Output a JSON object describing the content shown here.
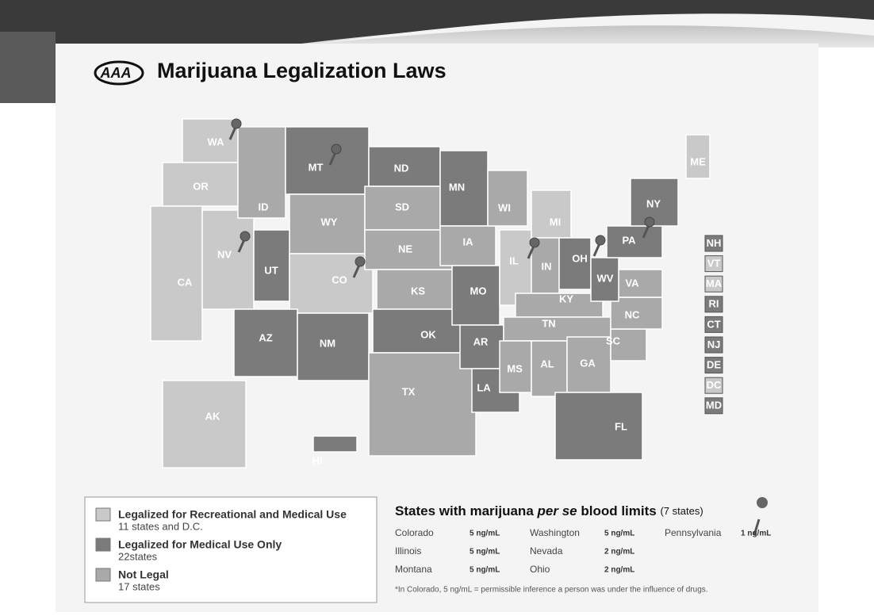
{
  "header": {
    "logo": "AAA",
    "title": "Marijuana Legalization Laws"
  },
  "states": [
    {
      "label": "WA",
      "color": "#c9c9c9",
      "pin": true
    },
    {
      "label": "OR",
      "color": "#c9c9c9"
    },
    {
      "label": "CA",
      "color": "#c9c9c9"
    },
    {
      "label": "NV",
      "color": "#c9c9c9",
      "pin": true
    },
    {
      "label": "ID",
      "color": "#a9a9a9"
    },
    {
      "label": "MT",
      "color": "#7b7b7b",
      "pin": true
    },
    {
      "label": "WY",
      "color": "#a9a9a9"
    },
    {
      "label": "UT",
      "color": "#7b7b7b"
    },
    {
      "label": "CO",
      "color": "#c9c9c9",
      "pin": true
    },
    {
      "label": "AZ",
      "color": "#7b7b7b"
    },
    {
      "label": "NM",
      "color": "#7b7b7b"
    },
    {
      "label": "ND",
      "color": "#7b7b7b"
    },
    {
      "label": "SD",
      "color": "#a9a9a9"
    },
    {
      "label": "NE",
      "color": "#a9a9a9"
    },
    {
      "label": "KS",
      "color": "#a9a9a9"
    },
    {
      "label": "OK",
      "color": "#7b7b7b"
    },
    {
      "label": "TX",
      "color": "#a9a9a9"
    },
    {
      "label": "MN",
      "color": "#7b7b7b"
    },
    {
      "label": "IA",
      "color": "#a9a9a9"
    },
    {
      "label": "MO",
      "color": "#7b7b7b"
    },
    {
      "label": "AR",
      "color": "#7b7b7b"
    },
    {
      "label": "LA",
      "color": "#7b7b7b"
    },
    {
      "label": "WI",
      "color": "#a9a9a9"
    },
    {
      "label": "IL",
      "color": "#c9c9c9",
      "pin": true
    },
    {
      "label": "MI",
      "color": "#c9c9c9"
    },
    {
      "label": "IN",
      "color": "#a9a9a9"
    },
    {
      "label": "OH",
      "color": "#7b7b7b",
      "pin": true
    },
    {
      "label": "KY",
      "color": "#a9a9a9"
    },
    {
      "label": "TN",
      "color": "#a9a9a9"
    },
    {
      "label": "MS",
      "color": "#a9a9a9"
    },
    {
      "label": "AL",
      "color": "#a9a9a9"
    },
    {
      "label": "GA",
      "color": "#a9a9a9"
    },
    {
      "label": "FL",
      "color": "#7b7b7b"
    },
    {
      "label": "SC",
      "color": "#a9a9a9"
    },
    {
      "label": "NC",
      "color": "#a9a9a9"
    },
    {
      "label": "VA",
      "color": "#a9a9a9"
    },
    {
      "label": "WV",
      "color": "#7b7b7b"
    },
    {
      "label": "PA",
      "color": "#7b7b7b",
      "pin": true
    },
    {
      "label": "NY",
      "color": "#7b7b7b"
    },
    {
      "label": "ME",
      "color": "#c9c9c9"
    },
    {
      "label": "AK",
      "color": "#c9c9c9"
    },
    {
      "label": "HI",
      "color": "#7b7b7b"
    }
  ],
  "small_states": [
    {
      "label": "NH",
      "color": "#7b7b7b"
    },
    {
      "label": "VT",
      "color": "#c9c9c9"
    },
    {
      "label": "MA",
      "color": "#c9c9c9"
    },
    {
      "label": "RI",
      "color": "#7b7b7b"
    },
    {
      "label": "CT",
      "color": "#7b7b7b"
    },
    {
      "label": "NJ",
      "color": "#7b7b7b"
    },
    {
      "label": "DE",
      "color": "#7b7b7b"
    },
    {
      "label": "DC",
      "color": "#c9c9c9"
    },
    {
      "label": "MD",
      "color": "#7b7b7b"
    }
  ],
  "legend": {
    "items": [
      {
        "label": "Legalized for Recreational and Medical Use",
        "sublabel": "11 states and D.C.",
        "color": "#c9c9c9"
      },
      {
        "label": "Legalized for Medical Use Only",
        "sublabel": "22states",
        "color": "#7b7b7b"
      },
      {
        "label": "Not Legal",
        "sublabel": "17 states",
        "color": "#a9a9a9"
      }
    ]
  },
  "limits": {
    "title": "States with marijuana",
    "title_italic": "per se",
    "title_end": "blood limits",
    "count": "(7 states)",
    "rows": [
      {
        "state": "Colorado",
        "limit": "5 ng/mL"
      },
      {
        "state": "Illinois",
        "limit": "5 ng/mL"
      },
      {
        "state": "Montana",
        "limit": "5 ng/mL"
      },
      {
        "state": "Washington",
        "limit": "5 ng/mL"
      },
      {
        "state": "Nevada",
        "limit": "2 ng/mL"
      },
      {
        "state": "Ohio",
        "limit": "2 ng/mL"
      },
      {
        "state": "Pennsylvania",
        "limit": "1 ng/mL"
      }
    ],
    "footnote": "*In Colorado, 5 ng/mL = permissible inference a person was under the influence of drugs."
  }
}
